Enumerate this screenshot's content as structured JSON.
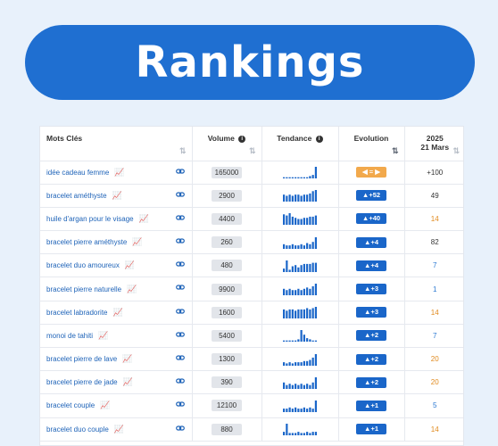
{
  "banner": {
    "title": "Rankings"
  },
  "colors": {
    "banner": "#1f6fd1",
    "link": "#1e63b8",
    "evolution_up": "#1a66c9",
    "evolution_neutral": "#f2a94c",
    "pos_dark": "#333333",
    "pos_orange": "#e08a1e",
    "pos_blue": "#2a78d2"
  },
  "table": {
    "headers": {
      "keyword": "Mots Clés",
      "volume": "Volume",
      "trend": "Tendance",
      "evolution": "Evolution",
      "date_year": "2025",
      "date_day": "21 Mars"
    },
    "rows": [
      {
        "keyword": "idée cadeau femme",
        "volume": "165000",
        "evolution": "=",
        "evolution_type": "neutral",
        "position": "+100",
        "position_color": "dark",
        "trend": [
          1,
          1,
          1,
          1,
          1,
          1,
          1,
          1,
          1,
          2,
          3,
          10
        ]
      },
      {
        "keyword": "bracelet améthyste",
        "volume": "2900",
        "evolution": "+52",
        "evolution_type": "up",
        "position": "49",
        "position_color": "dark",
        "trend": [
          6,
          5,
          6,
          5,
          6,
          6,
          5,
          6,
          6,
          7,
          9,
          10
        ]
      },
      {
        "keyword": "huile d'argan pour le visage",
        "volume": "4400",
        "evolution": "+40",
        "evolution_type": "up",
        "position": "14",
        "position_color": "orange",
        "trend": [
          9,
          8,
          10,
          7,
          6,
          5,
          5,
          6,
          6,
          7,
          7,
          8
        ]
      },
      {
        "keyword": "bracelet pierre améthyste",
        "volume": "260",
        "evolution": "+4",
        "evolution_type": "up",
        "position": "82",
        "position_color": "dark",
        "trend": [
          4,
          3,
          3,
          4,
          3,
          3,
          4,
          3,
          5,
          4,
          6,
          10
        ]
      },
      {
        "keyword": "bracelet duo amoureux",
        "volume": "480",
        "evolution": "+4",
        "evolution_type": "up",
        "position": "7",
        "position_color": "blue",
        "trend": [
          3,
          10,
          2,
          5,
          6,
          4,
          6,
          7,
          7,
          7,
          8,
          8
        ]
      },
      {
        "keyword": "bracelet pierre naturelle",
        "volume": "9900",
        "evolution": "+3",
        "evolution_type": "up",
        "position": "1",
        "position_color": "blue",
        "trend": [
          5,
          4,
          5,
          4,
          4,
          5,
          4,
          5,
          6,
          5,
          7,
          9
        ]
      },
      {
        "keyword": "bracelet labradorite",
        "volume": "1600",
        "evolution": "+3",
        "evolution_type": "up",
        "position": "14",
        "position_color": "orange",
        "trend": [
          7,
          6,
          7,
          7,
          6,
          7,
          7,
          7,
          8,
          7,
          8,
          9
        ]
      },
      {
        "keyword": "monoi de tahiti",
        "volume": "5400",
        "evolution": "+2",
        "evolution_type": "up",
        "position": "7",
        "position_color": "blue",
        "trend": [
          1,
          1,
          1,
          1,
          1,
          2,
          10,
          6,
          3,
          2,
          1,
          1
        ]
      },
      {
        "keyword": "bracelet pierre de lave",
        "volume": "1300",
        "evolution": "+2",
        "evolution_type": "up",
        "position": "20",
        "position_color": "orange",
        "trend": [
          3,
          2,
          3,
          2,
          3,
          3,
          3,
          4,
          4,
          5,
          7,
          10
        ]
      },
      {
        "keyword": "bracelet pierre de jade",
        "volume": "390",
        "evolution": "+2",
        "evolution_type": "up",
        "position": "20",
        "position_color": "orange",
        "trend": [
          5,
          3,
          4,
          3,
          4,
          3,
          4,
          3,
          4,
          3,
          5,
          9
        ]
      },
      {
        "keyword": "bracelet couple",
        "volume": "12100",
        "evolution": "+1",
        "evolution_type": "up",
        "position": "5",
        "position_color": "blue",
        "trend": [
          3,
          3,
          4,
          3,
          4,
          3,
          3,
          4,
          3,
          4,
          3,
          10
        ]
      },
      {
        "keyword": "bracelet duo couple",
        "volume": "880",
        "evolution": "+1",
        "evolution_type": "up",
        "position": "14",
        "position_color": "orange",
        "trend": [
          3,
          10,
          2,
          2,
          2,
          3,
          2,
          2,
          3,
          2,
          3,
          3
        ]
      }
    ]
  }
}
